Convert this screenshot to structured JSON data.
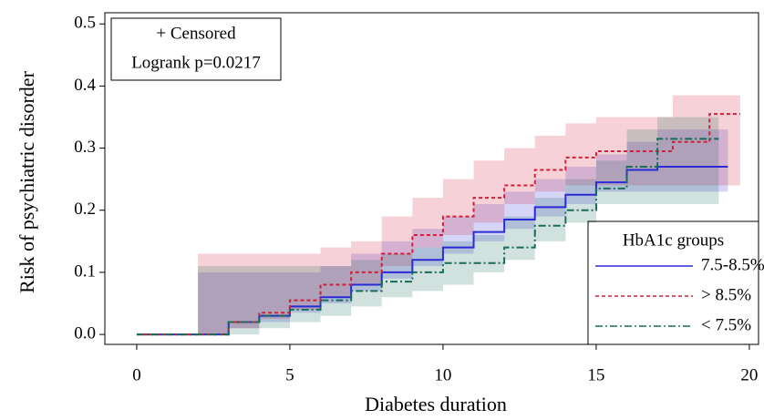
{
  "chart_data": {
    "type": "step",
    "annotations": [
      "+ Censored",
      "Logrank p=0.0217"
    ],
    "x_label": "Diabetes duration",
    "y_label": "Risk of psychiatric disorder",
    "xlim": [
      -1.04,
      20.3
    ],
    "ylim": [
      -0.016,
      0.518
    ],
    "xticks": [
      0,
      5,
      10,
      15,
      20
    ],
    "yticks": [
      {
        "value": 0,
        "label": "0.0"
      },
      0.1,
      0.2,
      0.3,
      0.4,
      0.5
    ],
    "legend_title": "HbA1c groups",
    "legend_position": "lower right",
    "series": [
      {
        "name": "7.5-8.5%",
        "color": "#2b2bd6",
        "dash": "solid",
        "x": [
          0,
          2,
          3,
          4,
          5,
          6,
          7,
          8,
          9,
          10,
          11,
          12,
          13,
          14,
          15,
          16,
          17,
          19.3
        ],
        "values": [
          0,
          0,
          0.02,
          0.03,
          0.045,
          0.06,
          0.08,
          0.1,
          0.12,
          0.14,
          0.165,
          0.185,
          0.205,
          0.225,
          0.245,
          0.265,
          0.27,
          0.27
        ],
        "upper": [
          null,
          0.1,
          0.1,
          0.1,
          0.1,
          0.11,
          0.13,
          0.15,
          0.17,
          0.19,
          0.21,
          0.23,
          0.25,
          0.27,
          0.29,
          0.31,
          0.33,
          0.33
        ],
        "lower": [
          null,
          0,
          0,
          0.01,
          0.02,
          0.035,
          0.05,
          0.07,
          0.09,
          0.11,
          0.13,
          0.15,
          0.17,
          0.19,
          0.21,
          0.23,
          0.23,
          0.23
        ]
      },
      {
        "name": "> 8.5%",
        "color": "#d0203a",
        "dash": "dashed",
        "x": [
          0,
          2,
          3,
          4,
          5,
          6,
          7,
          8,
          9,
          10,
          11,
          12,
          13,
          14,
          15,
          17.5,
          18.7,
          19.7
        ],
        "values": [
          0,
          0,
          0.02,
          0.035,
          0.055,
          0.08,
          0.1,
          0.13,
          0.16,
          0.19,
          0.22,
          0.24,
          0.265,
          0.285,
          0.295,
          0.31,
          0.355,
          0.355
        ],
        "upper": [
          null,
          0.13,
          0.13,
          0.13,
          0.13,
          0.14,
          0.15,
          0.19,
          0.22,
          0.25,
          0.28,
          0.3,
          0.32,
          0.34,
          0.35,
          0.385,
          0.385,
          0.385
        ],
        "lower": [
          null,
          0,
          0,
          0.01,
          0.025,
          0.04,
          0.06,
          0.08,
          0.11,
          0.14,
          0.16,
          0.18,
          0.21,
          0.23,
          0.24,
          0.24,
          0.24,
          0.24
        ]
      },
      {
        "name": "< 7.5%",
        "color": "#1a6b5a",
        "dash": "dashdot",
        "x": [
          0,
          2,
          3,
          4,
          5,
          6,
          7,
          8,
          9,
          10,
          11,
          12,
          13,
          14,
          15,
          16,
          17,
          19
        ],
        "values": [
          0,
          0,
          0.02,
          0.03,
          0.04,
          0.055,
          0.07,
          0.085,
          0.1,
          0.115,
          0.115,
          0.14,
          0.175,
          0.2,
          0.235,
          0.27,
          0.315,
          0.315
        ],
        "upper": [
          null,
          0.11,
          0.11,
          0.11,
          0.11,
          0.11,
          0.12,
          0.13,
          0.14,
          0.15,
          0.16,
          0.19,
          0.22,
          0.25,
          0.28,
          0.33,
          0.35,
          0.35
        ],
        "lower": [
          null,
          0,
          0,
          0,
          0.01,
          0.02,
          0.03,
          0.045,
          0.06,
          0.07,
          0.08,
          0.1,
          0.12,
          0.15,
          0.18,
          0.21,
          0.21,
          0.21
        ]
      }
    ]
  }
}
